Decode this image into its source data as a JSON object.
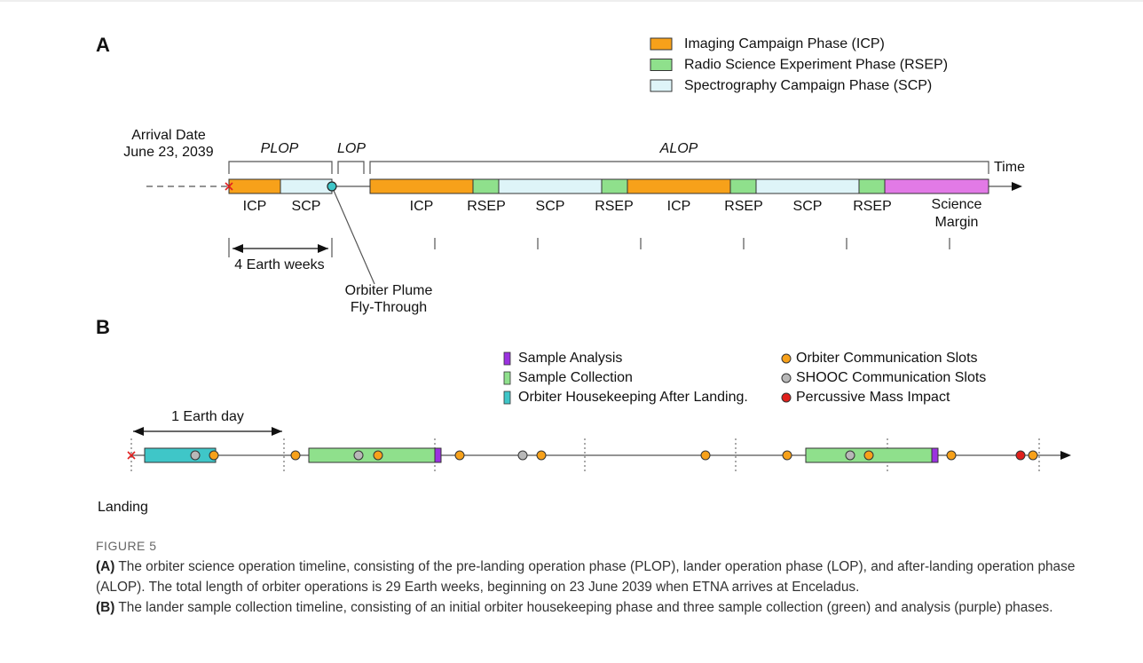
{
  "panel_a": {
    "label": "A",
    "legend": [
      {
        "label": "Imaging Campaign Phase (ICP)",
        "color": "#f7a11a"
      },
      {
        "label": "Radio Science Experiment Phase (RSEP)",
        "color": "#8fe08c"
      },
      {
        "label": "Spectrography Campaign Phase (SCP)",
        "color": "#def4f8"
      }
    ],
    "arrival": [
      "Arrival Date",
      "June 23, 2039"
    ],
    "phases": [
      "PLOP",
      "LOP",
      "ALOP"
    ],
    "time_label": "Time",
    "segments": [
      {
        "lines": [
          "ICP"
        ],
        "color": "#f7a11a"
      },
      {
        "lines": [
          "SCP"
        ],
        "color": "#def4f8"
      },
      {
        "lines": [
          "ICP"
        ],
        "color": "#f7a11a"
      },
      {
        "lines": [
          "RSEP"
        ],
        "color": "#8fe08c"
      },
      {
        "lines": [
          "SCP"
        ],
        "color": "#def4f8"
      },
      {
        "lines": [
          "RSEP"
        ],
        "color": "#8fe08c"
      },
      {
        "lines": [
          "ICP"
        ],
        "color": "#f7a11a"
      },
      {
        "lines": [
          "RSEP"
        ],
        "color": "#8fe08c"
      },
      {
        "lines": [
          "SCP"
        ],
        "color": "#def4f8"
      },
      {
        "lines": [
          "RSEP"
        ],
        "color": "#8fe08c"
      },
      {
        "lines": [
          "Science",
          "Margin"
        ],
        "color": "#e27ae6"
      }
    ],
    "duration": "4 Earth weeks",
    "flythrough": [
      "Orbiter Plume",
      "Fly-Through"
    ]
  },
  "panel_b": {
    "label": "B",
    "legend_boxes": [
      {
        "label": "Sample Analysis",
        "color": "#9b32e0"
      },
      {
        "label": "Sample Collection",
        "color": "#8fe08c"
      },
      {
        "label": "Orbiter Housekeeping After Landing.",
        "color": "#3fc6c8"
      }
    ],
    "legend_dots": [
      {
        "label": "Orbiter Communication Slots",
        "color": "#f7a11a"
      },
      {
        "label": "SHOOC Communication Slots",
        "color": "#b8b8b8"
      },
      {
        "label": "Percussive Mass Impact",
        "color": "#e0201c"
      }
    ],
    "duration": "1 Earth day",
    "landing": "Landing"
  },
  "caption": {
    "figure": "FIGURE 5",
    "label_a": "(A)",
    "text_a": "The orbiter science operation timeline, consisting of the pre-landing operation phase (PLOP), lander operation phase (LOP), and after-landing operation phase (ALOP). The total length of orbiter operations is 29 Earth weeks, beginning on 23 June 2039 when ETNA arrives at Enceladus.",
    "label_b": "(B)",
    "text_b": "The lander sample collection timeline, consisting of an initial orbiter housekeeping phase and three sample collection (green) and analysis (purple) phases."
  }
}
